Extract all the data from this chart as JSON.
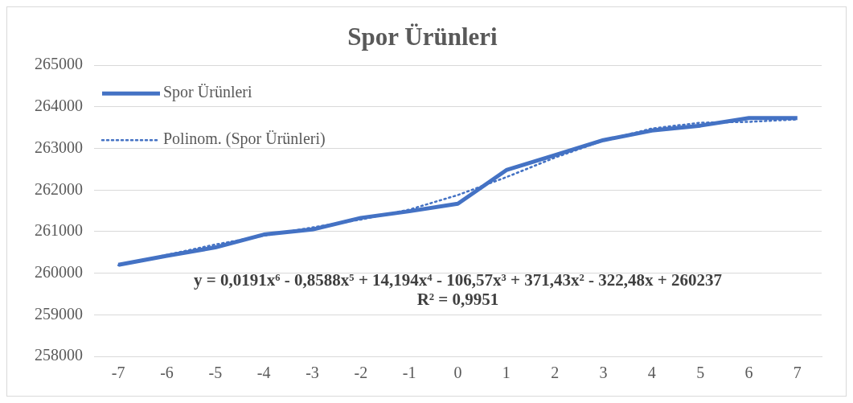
{
  "chart_data": {
    "type": "line",
    "title": "Spor Ürünleri",
    "categories": [
      "-7",
      "-6",
      "-5",
      "-4",
      "-3",
      "-2",
      "-1",
      "0",
      "1",
      "2",
      "3",
      "4",
      "5",
      "6",
      "7"
    ],
    "series": [
      {
        "name": "Spor Ürünleri",
        "color": "#4472c4",
        "line_style": "solid",
        "values": [
          260200,
          260420,
          260620,
          260930,
          261050,
          261330,
          261490,
          261670,
          262480,
          262840,
          263200,
          263430,
          263550,
          263730,
          263730
        ]
      },
      {
        "name": "Polinom. (Spor Ürünleri)",
        "color": "#4472c4",
        "line_style": "dotted",
        "values": [
          260190,
          260440,
          260690,
          260900,
          261100,
          261290,
          261530,
          261880,
          262310,
          262780,
          263190,
          263480,
          263620,
          263640,
          263700
        ]
      }
    ],
    "ylim": [
      258000,
      265000
    ],
    "yticks": [
      258000,
      259000,
      260000,
      261000,
      262000,
      263000,
      264000,
      265000
    ],
    "grid": "y",
    "legend": "top left",
    "marker": "none",
    "annotations": [
      "y = 0,0191x⁶ - 0,8588x⁵ + 14,194x⁴ - 106,57x³ + 371,43x² - 322,48x + 260237",
      "R² = 0,9951"
    ]
  }
}
